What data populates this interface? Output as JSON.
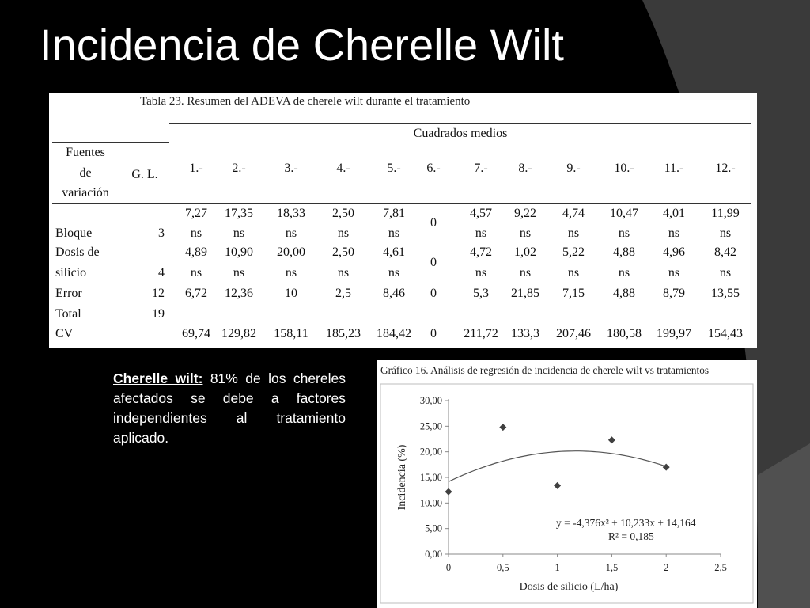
{
  "slide": {
    "title": "Incidencia de Cherelle Wilt"
  },
  "table": {
    "caption": "Tabla 23. Resumen del ADEVA de cherele wilt durante el tratamiento",
    "group_header": "Cuadrados medios",
    "source_header": [
      "Fuentes",
      "de",
      "variación"
    ],
    "gl_header": "G. L.",
    "treatments": [
      "1.-",
      "2.-",
      "3.-",
      "4.-",
      "5.-",
      "6.-",
      "7.-",
      "8.-",
      "9.-",
      "10.-",
      "11.-",
      "12.-"
    ],
    "rows": [
      {
        "label": [
          "Bloque"
        ],
        "gl": "3",
        "values": [
          "7,27",
          "17,35",
          "18,33",
          "2,50",
          "7,81",
          "0",
          "4,57",
          "9,22",
          "4,74",
          "10,47",
          "4,01",
          "11,99"
        ],
        "sig": [
          "ns",
          "ns",
          "ns",
          "ns",
          "ns",
          "",
          "ns",
          "ns",
          "ns",
          "ns",
          "ns",
          "ns"
        ]
      },
      {
        "label": [
          "Dosis de",
          "silicio"
        ],
        "gl": "4",
        "values": [
          "4,89",
          "10,90",
          "20,00",
          "2,50",
          "4,61",
          "0",
          "4,72",
          "1,02",
          "5,22",
          "4,88",
          "4,96",
          "8,42"
        ],
        "sig": [
          "ns",
          "ns",
          "ns",
          "ns",
          "ns",
          "",
          "ns",
          "ns",
          "ns",
          "ns",
          "ns",
          "ns"
        ]
      },
      {
        "label": [
          "Error"
        ],
        "gl": "12",
        "values": [
          "6,72",
          "12,36",
          "10",
          "2,5",
          "8,46",
          "0",
          "5,3",
          "21,85",
          "7,15",
          "4,88",
          "8,79",
          "13,55"
        ]
      },
      {
        "label": [
          "Total"
        ],
        "gl": "19"
      },
      {
        "label": [
          "CV"
        ],
        "values": [
          "69,74",
          "129,82",
          "158,11",
          "185,23",
          "184,42",
          "0",
          "211,72",
          "133,3",
          "207,46",
          "180,58",
          "199,97",
          "154,43"
        ]
      }
    ]
  },
  "note": {
    "heading": "Cherelle wilt:",
    "body": " 81% de los chereles afectados se debe a factores independientes al tratamiento aplicado."
  },
  "chart_data": {
    "type": "scatter",
    "title": "Gráfico 16. Análisis de regresión de incidencia de cherele wilt vs tratamientos",
    "xlabel": "Dosis de silicio (L/ha)",
    "ylabel": "Incidencia (%)",
    "xlim": [
      0,
      2.5
    ],
    "ylim": [
      0,
      30
    ],
    "x_ticks": [
      "0",
      "0,5",
      "1",
      "1,5",
      "2",
      "2,5"
    ],
    "y_ticks": [
      "0,00",
      "5,00",
      "10,00",
      "15,00",
      "20,00",
      "25,00",
      "30,00"
    ],
    "points": [
      {
        "x": 0,
        "y": 12.2
      },
      {
        "x": 0.5,
        "y": 24.8
      },
      {
        "x": 1,
        "y": 13.4
      },
      {
        "x": 1.5,
        "y": 22.3
      },
      {
        "x": 2,
        "y": 17.0
      }
    ],
    "trendline": {
      "type": "polynomial",
      "a": -4.376,
      "b": 10.233,
      "c": 14.164,
      "x_range": [
        0,
        2
      ]
    },
    "equation": "y = -4,376x² + 10,233x + 14,164",
    "r_squared": "R² = 0,185",
    "marker_color": "#404040",
    "line_color": "#555555",
    "grid": false
  },
  "colors": {
    "background": "#000000",
    "accent_shape": "#3a3a3a"
  }
}
